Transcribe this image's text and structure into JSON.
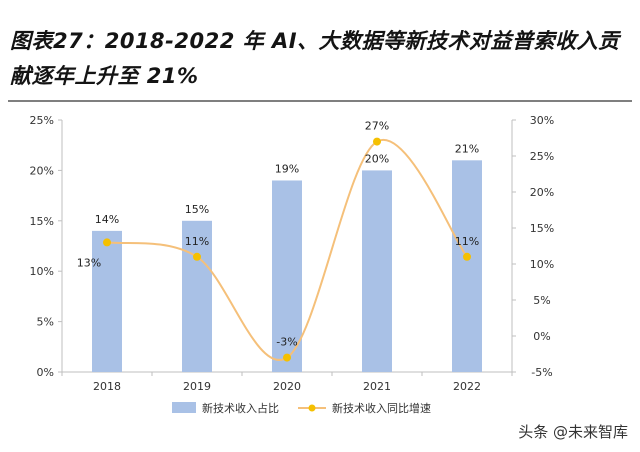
{
  "figure_title": "图表27：2018-2022 年 AI、大数据等新技术对益普索收入贡献逐年上升至 21%",
  "watermark": "头条 @未来智库",
  "chart_data": {
    "type": "bar",
    "categories": [
      "2018",
      "2019",
      "2020",
      "2021",
      "2022"
    ],
    "series": [
      {
        "name": "新技术收入占比",
        "type": "bar",
        "axis": "left",
        "values": [
          14,
          15,
          19,
          20,
          21
        ],
        "labels": [
          "14%",
          "15%",
          "19%",
          "20%",
          "21%"
        ],
        "color": "#a9c1e6"
      },
      {
        "name": "新技术收入同比增速",
        "type": "line",
        "axis": "right",
        "values": [
          13,
          11,
          -3,
          27,
          11
        ],
        "labels": [
          "13%",
          "11%",
          "-3%",
          "27%",
          "11%"
        ],
        "color": "#f5c07a",
        "marker_color": "#f5c000"
      }
    ],
    "left_axis": {
      "ylim": [
        0,
        25
      ],
      "ticks": [
        "0%",
        "5%",
        "10%",
        "15%",
        "20%",
        "25%"
      ]
    },
    "right_axis": {
      "ylim": [
        -5,
        30
      ],
      "ticks": [
        "-5%",
        "0%",
        "5%",
        "10%",
        "15%",
        "20%",
        "25%",
        "30%"
      ]
    },
    "legend_position": "bottom",
    "grid": false
  }
}
